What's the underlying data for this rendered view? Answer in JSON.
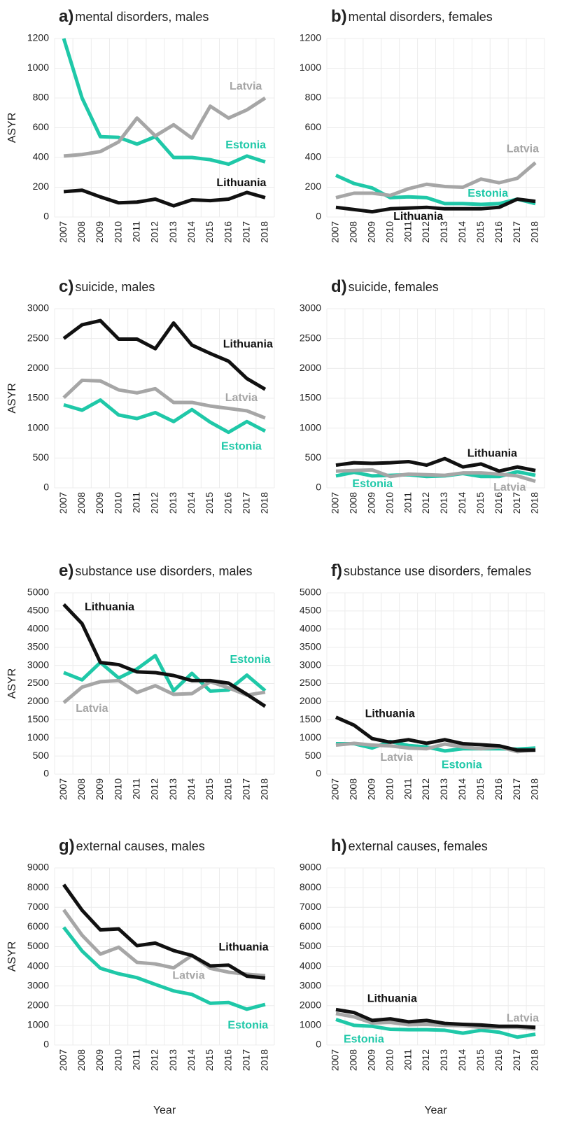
{
  "chart_data": [
    {
      "type": "line",
      "label": "a)",
      "title": "mental disorders, males",
      "ylabel": "ASYR",
      "categories": [
        "2007",
        "2008",
        "2009",
        "2010",
        "2011",
        "2012",
        "2013",
        "2014",
        "2015",
        "2016",
        "2017",
        "2018"
      ],
      "ylim": [
        0,
        1200
      ],
      "yticks": [
        0,
        200,
        400,
        600,
        800,
        1000,
        1200
      ],
      "grid": true,
      "series": [
        {
          "name": "Estonia",
          "color": "#1fc8a8",
          "values": [
            1200,
            800,
            540,
            535,
            490,
            540,
            400,
            400,
            385,
            355,
            410,
            370
          ]
        },
        {
          "name": "Latvia",
          "color": "#a6a6a6",
          "values": [
            410,
            420,
            440,
            505,
            665,
            545,
            620,
            530,
            745,
            665,
            720,
            800
          ]
        },
        {
          "name": "Lithuania",
          "color": "#111111",
          "values": [
            170,
            180,
            135,
            95,
            100,
            120,
            75,
            115,
            110,
            120,
            165,
            130
          ]
        }
      ]
    },
    {
      "type": "line",
      "label": "b)",
      "title": "mental disorders, females",
      "categories": [
        "2007",
        "2008",
        "2009",
        "2010",
        "2011",
        "2012",
        "2013",
        "2014",
        "2015",
        "2016",
        "2017",
        "2018"
      ],
      "ylim": [
        0,
        1200
      ],
      "yticks": [
        0,
        200,
        400,
        600,
        800,
        1000,
        1200
      ],
      "grid": true,
      "series": [
        {
          "name": "Estonia",
          "color": "#1fc8a8",
          "values": [
            280,
            225,
            195,
            130,
            135,
            130,
            90,
            90,
            85,
            90,
            120,
            90
          ]
        },
        {
          "name": "Latvia",
          "color": "#a6a6a6",
          "values": [
            130,
            160,
            160,
            145,
            190,
            220,
            205,
            200,
            255,
            230,
            260,
            365
          ]
        },
        {
          "name": "Lithuania",
          "color": "#111111",
          "values": [
            65,
            50,
            35,
            55,
            60,
            65,
            55,
            55,
            55,
            65,
            120,
            105
          ]
        }
      ]
    },
    {
      "type": "line",
      "label": "c)",
      "title": "suicide, males",
      "ylabel": "ASYR",
      "categories": [
        "2007",
        "2008",
        "2009",
        "2010",
        "2011",
        "2012",
        "2013",
        "2014",
        "2015",
        "2016",
        "2017",
        "2018"
      ],
      "ylim": [
        0,
        3000
      ],
      "yticks": [
        0,
        500,
        1000,
        1500,
        2000,
        2500,
        3000
      ],
      "grid": true,
      "series": [
        {
          "name": "Estonia",
          "color": "#1fc8a8",
          "values": [
            1390,
            1300,
            1470,
            1220,
            1160,
            1260,
            1110,
            1310,
            1100,
            930,
            1110,
            950
          ]
        },
        {
          "name": "Latvia",
          "color": "#a6a6a6",
          "values": [
            1510,
            1800,
            1790,
            1640,
            1590,
            1660,
            1430,
            1430,
            1370,
            1330,
            1290,
            1170
          ]
        },
        {
          "name": "Lithuania",
          "color": "#111111",
          "values": [
            2500,
            2730,
            2800,
            2490,
            2490,
            2330,
            2760,
            2390,
            2250,
            2120,
            1830,
            1650
          ]
        }
      ]
    },
    {
      "type": "line",
      "label": "d)",
      "title": "suicide, females",
      "categories": [
        "2007",
        "2008",
        "2009",
        "2010",
        "2011",
        "2012",
        "2013",
        "2014",
        "2015",
        "2016",
        "2017",
        "2018"
      ],
      "ylim": [
        0,
        3000
      ],
      "yticks": [
        0,
        500,
        1000,
        1500,
        2000,
        2500,
        3000
      ],
      "grid": true,
      "series": [
        {
          "name": "Estonia",
          "color": "#1fc8a8",
          "values": [
            200,
            260,
            200,
            210,
            220,
            190,
            200,
            240,
            190,
            190,
            270,
            210
          ]
        },
        {
          "name": "Latvia",
          "color": "#a6a6a6",
          "values": [
            280,
            290,
            300,
            190,
            230,
            220,
            210,
            250,
            250,
            230,
            200,
            110
          ]
        },
        {
          "name": "Lithuania",
          "color": "#111111",
          "values": [
            380,
            420,
            410,
            420,
            440,
            380,
            490,
            350,
            400,
            280,
            350,
            290
          ]
        }
      ]
    },
    {
      "type": "line",
      "label": "e)",
      "title": "substance use disorders, males",
      "ylabel": "ASYR",
      "categories": [
        "2007",
        "2008",
        "2009",
        "2010",
        "2011",
        "2012",
        "2013",
        "2014",
        "2015",
        "2016",
        "2017",
        "2018"
      ],
      "ylim": [
        0,
        5000
      ],
      "yticks": [
        0,
        500,
        1000,
        1500,
        2000,
        2500,
        3000,
        3500,
        4000,
        4500,
        5000
      ],
      "grid": true,
      "series": [
        {
          "name": "Estonia",
          "color": "#1fc8a8",
          "values": [
            2800,
            2600,
            3080,
            2650,
            2900,
            3270,
            2300,
            2780,
            2290,
            2320,
            2730,
            2300
          ]
        },
        {
          "name": "Latvia",
          "color": "#a6a6a6",
          "values": [
            1970,
            2400,
            2550,
            2580,
            2250,
            2440,
            2200,
            2220,
            2550,
            2380,
            2180,
            2260
          ]
        },
        {
          "name": "Lithuania",
          "color": "#111111",
          "values": [
            4680,
            4150,
            3080,
            3020,
            2820,
            2800,
            2720,
            2580,
            2580,
            2510,
            2200,
            1870
          ]
        }
      ]
    },
    {
      "type": "line",
      "label": "f)",
      "title": "substance use disorders, females",
      "categories": [
        "2007",
        "2008",
        "2009",
        "2010",
        "2011",
        "2012",
        "2013",
        "2014",
        "2015",
        "2016",
        "2017",
        "2018"
      ],
      "ylim": [
        0,
        5000
      ],
      "yticks": [
        0,
        500,
        1000,
        1500,
        2000,
        2500,
        3000,
        3500,
        4000,
        4500,
        5000
      ],
      "grid": true,
      "series": [
        {
          "name": "Estonia",
          "color": "#1fc8a8",
          "values": [
            840,
            840,
            720,
            900,
            790,
            750,
            640,
            700,
            700,
            700,
            690,
            720
          ]
        },
        {
          "name": "Latvia",
          "color": "#a6a6a6",
          "values": [
            800,
            850,
            800,
            780,
            720,
            700,
            830,
            750,
            700,
            750,
            620,
            670
          ]
        },
        {
          "name": "Lithuania",
          "color": "#111111",
          "values": [
            1570,
            1350,
            980,
            880,
            950,
            850,
            950,
            840,
            810,
            780,
            660,
            660
          ]
        }
      ]
    },
    {
      "type": "line",
      "label": "g)",
      "title": "external causes, males",
      "ylabel": "ASYR",
      "xlabel": "Year",
      "categories": [
        "2007",
        "2008",
        "2009",
        "2010",
        "2011",
        "2012",
        "2013",
        "2014",
        "2015",
        "2016",
        "2017",
        "2018"
      ],
      "ylim": [
        0,
        9000
      ],
      "yticks": [
        0,
        1000,
        2000,
        3000,
        4000,
        5000,
        6000,
        7000,
        8000,
        9000
      ],
      "grid": true,
      "series": [
        {
          "name": "Estonia",
          "color": "#1fc8a8",
          "values": [
            5980,
            4780,
            3900,
            3620,
            3420,
            3080,
            2750,
            2570,
            2120,
            2160,
            1820,
            2060
          ]
        },
        {
          "name": "Latvia",
          "color": "#a6a6a6",
          "values": [
            6870,
            5580,
            4620,
            4970,
            4200,
            4120,
            3920,
            4550,
            3900,
            3700,
            3600,
            3520
          ]
        },
        {
          "name": "Lithuania",
          "color": "#111111",
          "values": [
            8150,
            6850,
            5850,
            5900,
            5050,
            5180,
            4800,
            4550,
            4020,
            4060,
            3500,
            3400
          ]
        }
      ]
    },
    {
      "type": "line",
      "label": "h)",
      "title": "external causes, females",
      "xlabel": "Year",
      "categories": [
        "2007",
        "2008",
        "2009",
        "2010",
        "2011",
        "2012",
        "2013",
        "2014",
        "2015",
        "2016",
        "2017",
        "2018"
      ],
      "ylim": [
        0,
        9000
      ],
      "yticks": [
        0,
        1000,
        2000,
        3000,
        4000,
        5000,
        6000,
        7000,
        8000,
        9000
      ],
      "grid": true,
      "series": [
        {
          "name": "Estonia",
          "color": "#1fc8a8",
          "values": [
            1300,
            1000,
            950,
            800,
            780,
            780,
            750,
            600,
            750,
            650,
            400,
            550
          ]
        },
        {
          "name": "Latvia",
          "color": "#a6a6a6",
          "values": [
            1600,
            1430,
            1120,
            1150,
            1030,
            1050,
            1000,
            980,
            900,
            900,
            900,
            820
          ]
        },
        {
          "name": "Lithuania",
          "color": "#111111",
          "values": [
            1800,
            1650,
            1250,
            1330,
            1180,
            1250,
            1100,
            1050,
            1020,
            950,
            950,
            900
          ]
        }
      ]
    }
  ]
}
